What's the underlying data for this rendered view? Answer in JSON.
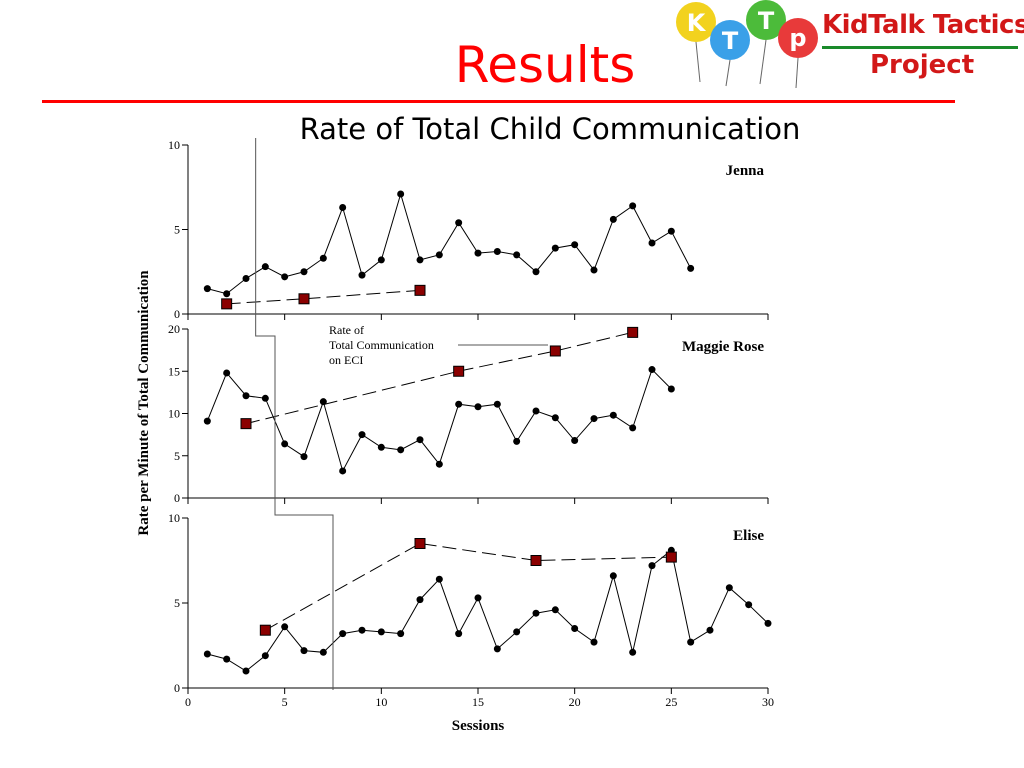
{
  "header": {
    "title": "Results",
    "subtitle": "Rate of Total Child Communication"
  },
  "logo": {
    "balloon_letters": [
      "K",
      "T",
      "T",
      "p"
    ],
    "line1": "KidTalk Tactics",
    "line2": "Project",
    "colors": {
      "text": "#d21818",
      "rule": "#1a8a2a",
      "balloon_k": "#f2d21e",
      "balloon_t1": "#3aa0e8",
      "balloon_t2": "#4cbb3a",
      "balloon_p": "#e83a3a"
    }
  },
  "chart_data": [
    {
      "type": "line",
      "panel": "Jenna",
      "ylim": [
        0,
        10
      ],
      "yticks": [
        0,
        5,
        10
      ],
      "series": [
        {
          "style": "circle-solid",
          "points": [
            [
              1,
              1.5
            ],
            [
              2,
              1.2
            ],
            [
              3,
              2.1
            ],
            [
              4,
              2.8
            ],
            [
              5,
              2.2
            ],
            [
              6,
              2.5
            ],
            [
              7,
              3.3
            ],
            [
              8,
              6.3
            ],
            [
              9,
              2.3
            ],
            [
              10,
              3.2
            ],
            [
              11,
              7.1
            ],
            [
              12,
              3.2
            ],
            [
              13,
              3.5
            ],
            [
              14,
              5.4
            ],
            [
              15,
              3.6
            ],
            [
              16,
              3.7
            ],
            [
              17,
              3.5
            ],
            [
              18,
              2.5
            ],
            [
              19,
              3.9
            ],
            [
              20,
              4.1
            ],
            [
              21,
              2.6
            ],
            [
              22,
              5.6
            ],
            [
              23,
              6.4
            ],
            [
              24,
              4.2
            ],
            [
              25,
              4.9
            ],
            [
              26,
              2.7
            ]
          ]
        },
        {
          "style": "square-dashed",
          "points": [
            [
              2,
              0.6
            ],
            [
              6,
              0.9
            ],
            [
              12,
              1.4
            ]
          ]
        }
      ]
    },
    {
      "type": "line",
      "panel": "Maggie Rose",
      "ylim": [
        0,
        20
      ],
      "yticks": [
        0,
        5,
        10,
        15,
        20
      ],
      "series": [
        {
          "style": "circle-solid",
          "points": [
            [
              1,
              9.1
            ],
            [
              2,
              14.8
            ],
            [
              3,
              12.1
            ],
            [
              4,
              11.8
            ],
            [
              5,
              6.4
            ],
            [
              6,
              4.9
            ],
            [
              7,
              11.4
            ],
            [
              8,
              3.2
            ],
            [
              9,
              7.5
            ],
            [
              10,
              6.0
            ],
            [
              11,
              5.7
            ],
            [
              12,
              6.9
            ],
            [
              13,
              4.0
            ],
            [
              14,
              11.1
            ],
            [
              15,
              10.8
            ],
            [
              16,
              11.1
            ],
            [
              17,
              6.7
            ],
            [
              18,
              10.3
            ],
            [
              19,
              9.5
            ],
            [
              20,
              6.8
            ],
            [
              21,
              9.4
            ],
            [
              22,
              9.8
            ],
            [
              23,
              8.3
            ],
            [
              24,
              15.2
            ],
            [
              25,
              12.9
            ]
          ]
        },
        {
          "style": "square-dashed",
          "points": [
            [
              3,
              8.8
            ],
            [
              14,
              15.0
            ],
            [
              19,
              17.4
            ],
            [
              23,
              19.6
            ]
          ]
        }
      ]
    },
    {
      "type": "line",
      "panel": "Elise",
      "ylim": [
        0,
        10
      ],
      "yticks": [
        0,
        5,
        10
      ],
      "series": [
        {
          "style": "circle-solid",
          "points": [
            [
              1,
              2.0
            ],
            [
              2,
              1.7
            ],
            [
              3,
              1.0
            ],
            [
              4,
              1.9
            ],
            [
              5,
              3.6
            ],
            [
              6,
              2.2
            ],
            [
              7,
              2.1
            ],
            [
              8,
              3.2
            ],
            [
              9,
              3.4
            ],
            [
              10,
              3.3
            ],
            [
              11,
              3.2
            ],
            [
              12,
              5.2
            ],
            [
              13,
              6.4
            ],
            [
              14,
              3.2
            ],
            [
              15,
              5.3
            ],
            [
              16,
              2.3
            ],
            [
              17,
              3.3
            ],
            [
              18,
              4.4
            ],
            [
              19,
              4.6
            ],
            [
              20,
              3.5
            ],
            [
              21,
              2.7
            ],
            [
              22,
              6.6
            ],
            [
              23,
              2.1
            ],
            [
              24,
              7.2
            ],
            [
              25,
              8.1
            ],
            [
              26,
              2.7
            ],
            [
              27,
              3.4
            ],
            [
              28,
              5.9
            ],
            [
              29,
              4.9
            ],
            [
              30,
              3.8
            ]
          ]
        },
        {
          "style": "square-dashed",
          "points": [
            [
              4,
              3.4
            ],
            [
              12,
              8.5
            ],
            [
              18,
              7.5
            ],
            [
              25,
              7.7
            ]
          ]
        }
      ]
    }
  ],
  "axes": {
    "xlim": [
      0,
      30
    ],
    "xticks": [
      0,
      5,
      10,
      15,
      20,
      25,
      30
    ],
    "xlabel": "Sessions",
    "ylabel": "Rate per Minute of Total Communication"
  },
  "annotation": [
    "Rate of",
    "Total Communication",
    "on ECI"
  ],
  "phase_change_sessions": [
    3.5,
    4.5,
    7.5
  ],
  "colors": {
    "marker_square": "#8b0000",
    "line": "#000000",
    "title": "#ff0000"
  }
}
